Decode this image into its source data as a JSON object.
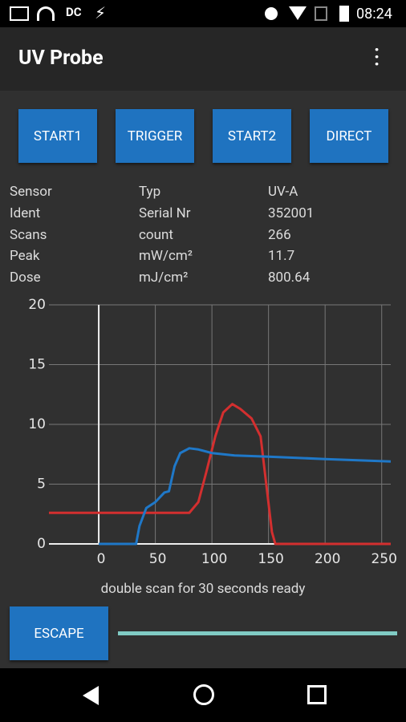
{
  "status_bar": {
    "carrier": "DC",
    "time": "08:24"
  },
  "app_bar": {
    "title": "UV Probe"
  },
  "buttons": [
    "START1",
    "TRIGGER",
    "START2",
    "DIRECT"
  ],
  "table": {
    "rows": [
      [
        "Sensor",
        "Typ",
        "UV-A"
      ],
      [
        "Ident",
        "Serial Nr",
        "352001"
      ],
      [
        "Scans",
        "count",
        "266"
      ],
      [
        "Peak",
        "mW/cm²",
        "11.7"
      ],
      [
        "Dose",
        "mJ/cm²",
        "800.64"
      ]
    ]
  },
  "chart_data": {
    "type": "line",
    "series": [
      {
        "color": "#d32f2f",
        "x": [
          -44,
          80,
          88,
          95,
          103,
          110,
          118,
          125,
          135,
          143,
          148,
          153,
          156,
          258
        ],
        "values": [
          2.6,
          2.6,
          3.5,
          6,
          9,
          11,
          11.7,
          11.3,
          10.5,
          9,
          5,
          1,
          0,
          0
        ]
      },
      {
        "color": "#1f78c8",
        "x": [
          0,
          33,
          36,
          42,
          50,
          58,
          62,
          67,
          72,
          80,
          88,
          100,
          120,
          150,
          200,
          258
        ],
        "values": [
          0,
          0,
          1.5,
          3,
          3.5,
          4.3,
          4.4,
          6.5,
          7.6,
          8,
          7.9,
          7.6,
          7.4,
          7.3,
          7.1,
          6.9
        ]
      }
    ],
    "xlim": [
      -44,
      258
    ],
    "ylim": [
      0,
      20
    ],
    "xticks": [
      0,
      50,
      100,
      150,
      200,
      250
    ],
    "yticks": [
      0,
      5,
      10,
      15,
      20
    ],
    "grid": true
  },
  "status_message": "double scan for 30 seconds ready",
  "escape_button": "ESCAPE"
}
